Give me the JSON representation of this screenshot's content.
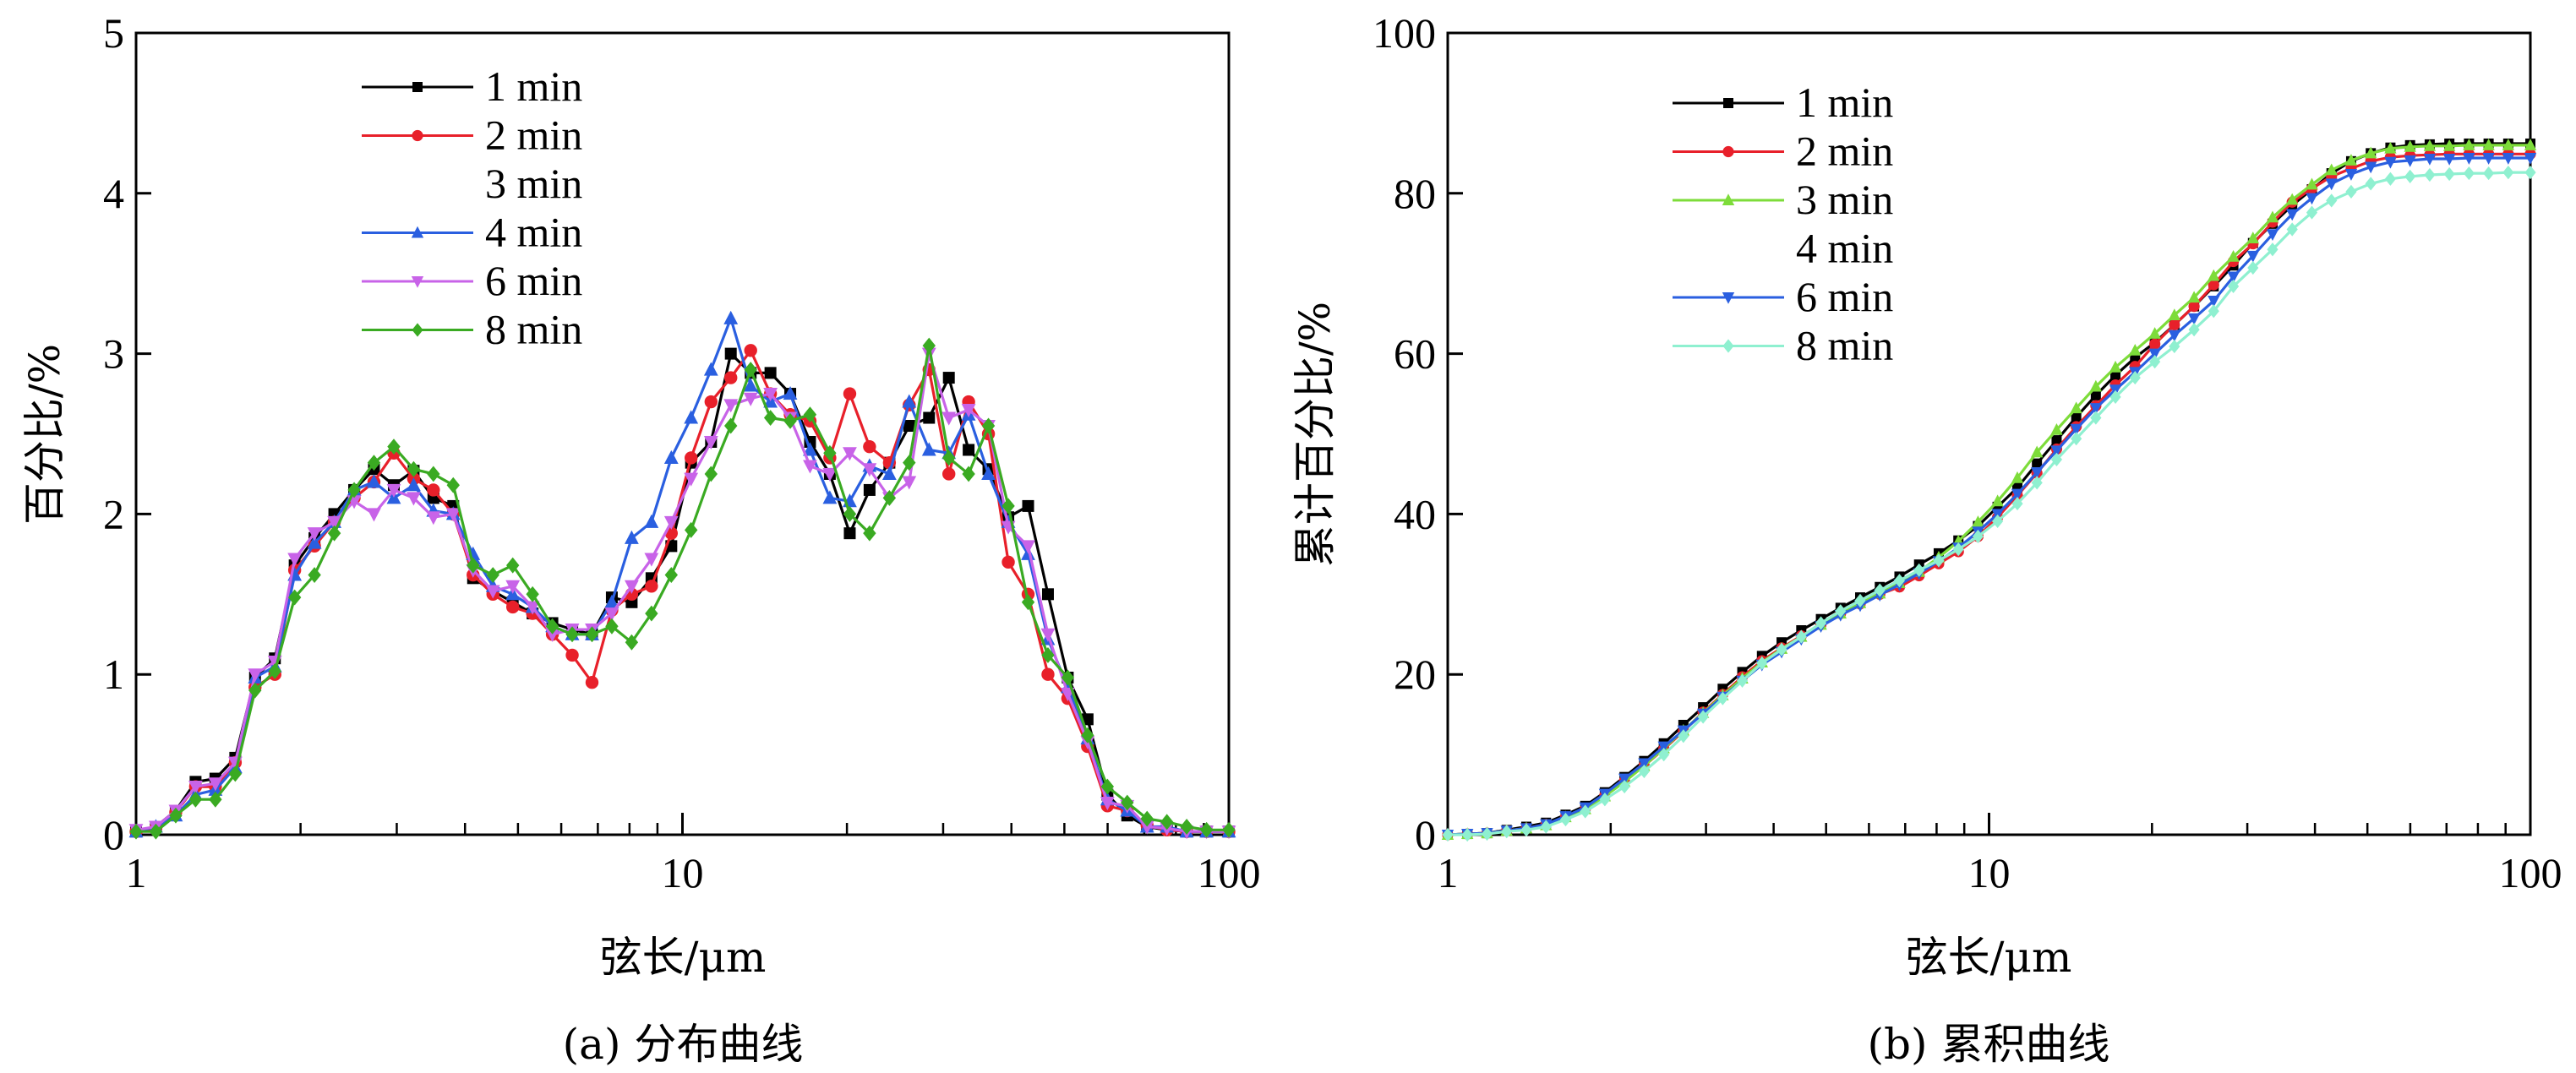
{
  "chart_data": [
    {
      "id": "a",
      "type": "line",
      "caption": "(a) 分布曲线",
      "xlabel": "弦长/μm",
      "ylabel": "百分比/%",
      "xscale": "log",
      "xlim": [
        1,
        100
      ],
      "ylim": [
        0,
        5
      ],
      "xticks": [
        1,
        10,
        100
      ],
      "xtick_labels": [
        "1",
        "10",
        "100"
      ],
      "yticks": [
        0,
        1,
        2,
        3,
        4,
        5
      ],
      "ytick_labels": [
        "0",
        "1",
        "2",
        "3",
        "4",
        "5"
      ],
      "grid": false,
      "legend_position": "top-left",
      "x": [
        1.0,
        1.087,
        1.182,
        1.285,
        1.397,
        1.519,
        1.651,
        1.795,
        1.951,
        2.121,
        2.306,
        2.507,
        2.725,
        2.963,
        3.221,
        3.501,
        3.806,
        4.138,
        4.499,
        4.891,
        5.317,
        5.78,
        6.284,
        6.831,
        7.426,
        8.073,
        8.777,
        9.541,
        10.37,
        11.28,
        12.26,
        13.33,
        14.49,
        15.75,
        17.12,
        18.61,
        20.24,
        22.0,
        23.92,
        26.0,
        28.27,
        30.73,
        33.4,
        36.31,
        39.48,
        42.92,
        46.66,
        50.72,
        55.14,
        59.95,
        65.17,
        70.85,
        77.02,
        83.73,
        91.03,
        100.0
      ],
      "series": [
        {
          "name": "1 min",
          "color": "#000000",
          "marker": "square",
          "legend_line": true,
          "values": [
            0.02,
            0.05,
            0.15,
            0.33,
            0.35,
            0.48,
            0.98,
            1.1,
            1.68,
            1.85,
            2.0,
            2.15,
            2.28,
            2.18,
            2.27,
            2.1,
            2.05,
            1.6,
            1.52,
            1.45,
            1.38,
            1.32,
            1.28,
            1.25,
            1.48,
            1.45,
            1.6,
            1.8,
            2.32,
            2.45,
            3.0,
            2.88,
            2.88,
            2.75,
            2.45,
            2.25,
            1.88,
            2.15,
            2.32,
            2.55,
            2.6,
            2.85,
            2.4,
            2.28,
            1.98,
            2.05,
            1.5,
            0.98,
            0.72,
            0.25,
            0.12,
            0.05,
            0.03,
            0.02,
            0.02,
            0.02
          ]
        },
        {
          "name": "2 min",
          "color": "#e8202a",
          "marker": "circle",
          "legend_line": true,
          "values": [
            0.02,
            0.04,
            0.14,
            0.3,
            0.3,
            0.45,
            0.92,
            1.0,
            1.65,
            1.8,
            1.95,
            2.1,
            2.2,
            2.38,
            2.22,
            2.15,
            2.0,
            1.62,
            1.5,
            1.42,
            1.38,
            1.25,
            1.12,
            0.95,
            1.4,
            1.5,
            1.55,
            1.88,
            2.35,
            2.7,
            2.85,
            3.02,
            2.75,
            2.62,
            2.58,
            2.35,
            2.75,
            2.42,
            2.32,
            2.68,
            2.9,
            2.25,
            2.7,
            2.5,
            1.7,
            1.5,
            1.0,
            0.85,
            0.55,
            0.18,
            0.15,
            0.06,
            0.03,
            0.02,
            0.02,
            0.02
          ]
        },
        {
          "name": "4 min",
          "color": "#2a5fe0",
          "marker": "triangle-up",
          "legend_line": true,
          "values": [
            0.02,
            0.05,
            0.12,
            0.25,
            0.28,
            0.42,
            0.98,
            1.05,
            1.62,
            1.82,
            1.95,
            2.15,
            2.2,
            2.1,
            2.18,
            2.02,
            2.0,
            1.75,
            1.55,
            1.5,
            1.42,
            1.3,
            1.25,
            1.25,
            1.45,
            1.85,
            1.95,
            2.35,
            2.6,
            2.9,
            3.22,
            2.8,
            2.7,
            2.75,
            2.4,
            2.1,
            2.08,
            2.3,
            2.25,
            2.7,
            2.4,
            2.38,
            2.62,
            2.25,
            1.95,
            1.75,
            1.22,
            0.92,
            0.6,
            0.22,
            0.15,
            0.05,
            0.05,
            0.02,
            0.02,
            0.02
          ]
        },
        {
          "name": "6 min",
          "color": "#c863e8",
          "marker": "triangle-down",
          "legend_line": true,
          "values": [
            0.03,
            0.05,
            0.15,
            0.3,
            0.32,
            0.45,
            1.0,
            1.08,
            1.72,
            1.88,
            1.95,
            2.08,
            2.0,
            2.15,
            2.1,
            1.98,
            2.0,
            1.65,
            1.52,
            1.55,
            1.42,
            1.25,
            1.28,
            1.28,
            1.38,
            1.55,
            1.72,
            1.95,
            2.22,
            2.45,
            2.68,
            2.72,
            2.75,
            2.6,
            2.3,
            2.25,
            2.38,
            2.28,
            2.1,
            2.2,
            3.0,
            2.6,
            2.65,
            2.55,
            1.92,
            1.8,
            1.25,
            0.88,
            0.58,
            0.2,
            0.18,
            0.05,
            0.04,
            0.02,
            0.02,
            0.02
          ]
        },
        {
          "name": "8 min",
          "color": "#3aaa22",
          "marker": "diamond",
          "legend_line": true,
          "values": [
            0.02,
            0.02,
            0.12,
            0.22,
            0.22,
            0.38,
            0.9,
            1.02,
            1.48,
            1.62,
            1.88,
            2.15,
            2.32,
            2.42,
            2.28,
            2.25,
            2.18,
            1.68,
            1.62,
            1.68,
            1.5,
            1.3,
            1.25,
            1.25,
            1.3,
            1.2,
            1.38,
            1.62,
            1.9,
            2.25,
            2.55,
            2.9,
            2.6,
            2.58,
            2.62,
            2.38,
            2.0,
            1.88,
            2.1,
            2.32,
            3.05,
            2.35,
            2.25,
            2.55,
            2.05,
            1.45,
            1.12,
            0.98,
            0.62,
            0.3,
            0.2,
            0.1,
            0.08,
            0.05,
            0.03,
            0.03
          ]
        }
      ],
      "legend": [
        {
          "label": "1 min",
          "color": "#000000",
          "marker": "square",
          "line": true
        },
        {
          "label": "2 min",
          "color": "#e8202a",
          "marker": "circle",
          "line": true
        },
        {
          "label": "3 min",
          "color": "#ffffff",
          "marker": "none",
          "line": false
        },
        {
          "label": "4 min",
          "color": "#2a5fe0",
          "marker": "triangle-up",
          "line": true
        },
        {
          "label": "6 min",
          "color": "#c863e8",
          "marker": "triangle-down",
          "line": true
        },
        {
          "label": "8 min",
          "color": "#3aaa22",
          "marker": "diamond",
          "line": true
        }
      ]
    },
    {
      "id": "b",
      "type": "line",
      "caption": "(b) 累积曲线",
      "xlabel": "弦长/μm",
      "ylabel": "累计百分比/%",
      "xscale": "log",
      "xlim": [
        1,
        100
      ],
      "ylim": [
        0,
        100
      ],
      "xticks": [
        1,
        10,
        100
      ],
      "xtick_labels": [
        "1",
        "10",
        "100"
      ],
      "yticks": [
        0,
        20,
        40,
        60,
        80,
        100
      ],
      "ytick_labels": [
        "0",
        "20",
        "40",
        "60",
        "80",
        "100"
      ],
      "grid": false,
      "legend_position": "top-left",
      "x": [
        1.0,
        1.087,
        1.182,
        1.285,
        1.397,
        1.519,
        1.651,
        1.795,
        1.951,
        2.121,
        2.306,
        2.507,
        2.725,
        2.963,
        3.221,
        3.501,
        3.806,
        4.138,
        4.499,
        4.891,
        5.317,
        5.78,
        6.284,
        6.831,
        7.426,
        8.073,
        8.777,
        9.541,
        10.37,
        11.28,
        12.26,
        13.33,
        14.49,
        15.75,
        17.12,
        18.61,
        20.24,
        22.0,
        23.92,
        26.0,
        28.27,
        30.73,
        33.4,
        36.31,
        39.48,
        42.92,
        46.66,
        50.72,
        55.14,
        59.95,
        65.17,
        70.85,
        77.02,
        83.73,
        91.03,
        100.0
      ],
      "series": [
        {
          "name": "1 min",
          "color": "#000000",
          "marker": "square",
          "values": [
            0.0,
            0.1,
            0.2,
            0.6,
            1.0,
            1.5,
            2.5,
            3.6,
            5.3,
            7.2,
            9.2,
            11.4,
            13.7,
            15.9,
            18.2,
            20.3,
            22.3,
            24.0,
            25.5,
            26.9,
            28.3,
            29.6,
            30.9,
            32.2,
            33.7,
            35.1,
            36.7,
            38.5,
            40.9,
            43.3,
            46.3,
            49.2,
            52.1,
            54.8,
            57.3,
            59.5,
            61.4,
            63.6,
            65.9,
            68.4,
            71.0,
            73.8,
            76.2,
            78.5,
            80.5,
            82.5,
            84.0,
            85.0,
            85.7,
            86.0,
            86.1,
            86.2,
            86.2,
            86.2,
            86.2,
            86.2
          ]
        },
        {
          "name": "2 min",
          "color": "#e8202a",
          "marker": "circle",
          "values": [
            0.0,
            0.1,
            0.2,
            0.5,
            0.8,
            1.3,
            2.2,
            3.2,
            4.9,
            6.7,
            8.6,
            10.7,
            12.9,
            15.3,
            17.5,
            19.7,
            21.7,
            23.3,
            24.8,
            26.2,
            27.6,
            28.8,
            30.0,
            30.9,
            32.3,
            33.8,
            35.3,
            37.2,
            39.6,
            42.3,
            45.1,
            48.1,
            50.9,
            53.5,
            56.1,
            58.4,
            61.2,
            63.6,
            65.9,
            68.6,
            71.5,
            73.7,
            76.4,
            78.9,
            80.6,
            82.1,
            83.1,
            84.0,
            84.5,
            84.7,
            84.8,
            84.9,
            84.9,
            84.9,
            84.9,
            84.9
          ]
        },
        {
          "name": "3 min",
          "color": "#7ddc3a",
          "marker": "triangle-up",
          "values": [
            0.0,
            0.1,
            0.2,
            0.5,
            0.8,
            1.2,
            2.2,
            3.2,
            4.8,
            6.6,
            8.6,
            10.8,
            13.0,
            15.2,
            17.4,
            19.5,
            21.5,
            23.2,
            24.7,
            26.2,
            27.6,
            28.9,
            30.1,
            31.4,
            32.8,
            34.6,
            36.6,
            39.0,
            41.6,
            44.5,
            47.7,
            50.5,
            53.2,
            55.9,
            58.3,
            60.4,
            62.5,
            64.8,
            67.0,
            69.7,
            72.1,
            74.4,
            77.0,
            79.2,
            81.1,
            82.9,
            84.1,
            85.0,
            85.6,
            85.8,
            85.9,
            85.9,
            86.0,
            86.0,
            86.0,
            86.0
          ]
        },
        {
          "name": "6 min",
          "color": "#2a5fe0",
          "marker": "triangle-down",
          "values": [
            0.0,
            0.1,
            0.2,
            0.5,
            0.8,
            1.3,
            2.3,
            3.4,
            5.1,
            7.0,
            8.9,
            11.0,
            13.0,
            15.1,
            17.2,
            19.2,
            21.2,
            22.8,
            24.4,
            26.0,
            27.4,
            28.6,
            29.9,
            31.2,
            32.6,
            34.1,
            35.8,
            37.8,
            40.0,
            42.5,
            45.2,
            47.9,
            50.6,
            53.2,
            55.5,
            57.7,
            60.0,
            62.3,
            64.4,
            66.6,
            69.6,
            72.2,
            74.9,
            77.4,
            79.4,
            81.2,
            82.4,
            83.3,
            83.9,
            84.1,
            84.3,
            84.3,
            84.4,
            84.4,
            84.4,
            84.4
          ]
        },
        {
          "name": "8 min",
          "color": "#8ff0d0",
          "marker": "diamond",
          "values": [
            0.0,
            0.0,
            0.1,
            0.4,
            0.6,
            1.0,
            1.9,
            2.9,
            4.4,
            6.0,
            7.9,
            10.0,
            12.3,
            14.7,
            17.0,
            19.2,
            21.4,
            23.1,
            24.7,
            26.4,
            27.9,
            29.2,
            30.5,
            31.7,
            33.0,
            34.2,
            35.6,
            37.2,
            39.1,
            41.3,
            43.9,
            46.8,
            49.4,
            52.0,
            54.6,
            57.0,
            59.0,
            60.9,
            63.0,
            65.3,
            68.4,
            70.7,
            73.0,
            75.5,
            77.6,
            79.1,
            80.2,
            81.2,
            81.8,
            82.1,
            82.3,
            82.4,
            82.5,
            82.5,
            82.6,
            82.6
          ]
        }
      ],
      "legend": [
        {
          "label": "1 min",
          "color": "#000000",
          "marker": "square",
          "line": true
        },
        {
          "label": "2 min",
          "color": "#e8202a",
          "marker": "circle",
          "line": true
        },
        {
          "label": "3 min",
          "color": "#7ddc3a",
          "marker": "triangle-up",
          "line": true
        },
        {
          "label": "4 min",
          "color": "#ffffff",
          "marker": "none",
          "line": false
        },
        {
          "label": "6 min",
          "color": "#2a5fe0",
          "marker": "triangle-down",
          "line": true
        },
        {
          "label": "8 min",
          "color": "#8ff0d0",
          "marker": "diamond",
          "line": true
        }
      ]
    }
  ]
}
